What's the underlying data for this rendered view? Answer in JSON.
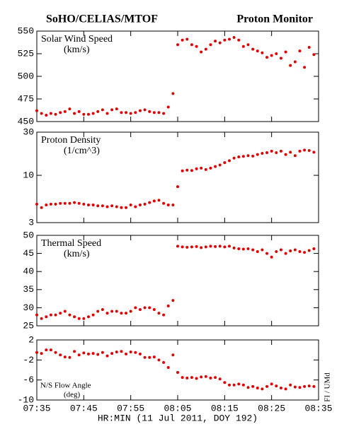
{
  "header": {
    "left": "SoHO/CELIAS/MTOF",
    "right": "Proton Monitor"
  },
  "credit": "FI / UMd",
  "chart_data": [
    {
      "type": "scatter",
      "title": "Solar Wind Speed",
      "unit": "(km/s)",
      "color": "#e00000",
      "x": [
        "07:35",
        "07:36",
        "07:37",
        "07:38",
        "07:39",
        "07:40",
        "07:41",
        "07:42",
        "07:43",
        "07:44",
        "07:45",
        "07:46",
        "07:47",
        "07:48",
        "07:49",
        "07:50",
        "07:51",
        "07:52",
        "07:53",
        "07:54",
        "07:55",
        "07:56",
        "07:57",
        "07:58",
        "07:59",
        "08:00",
        "08:01",
        "08:02",
        "08:03",
        "08:04",
        "08:05",
        "08:06",
        "08:07",
        "08:08",
        "08:09",
        "08:10",
        "08:11",
        "08:12",
        "08:13",
        "08:14",
        "08:15",
        "08:16",
        "08:17",
        "08:18",
        "08:19",
        "08:20",
        "08:21",
        "08:22",
        "08:23",
        "08:24",
        "08:25",
        "08:26",
        "08:27",
        "08:28",
        "08:29",
        "08:30",
        "08:31",
        "08:32",
        "08:33",
        "08:34"
      ],
      "values": [
        462,
        459,
        457,
        459,
        458,
        460,
        461,
        464,
        459,
        461,
        458,
        458,
        459,
        461,
        463,
        459,
        463,
        464,
        460,
        460,
        459,
        460,
        462,
        463,
        461,
        460,
        460,
        459,
        466,
        481,
        535,
        540,
        541,
        535,
        533,
        527,
        530,
        535,
        539,
        537,
        540,
        541,
        543,
        540,
        533,
        535,
        530,
        528,
        526,
        521,
        523,
        525,
        520,
        527,
        512,
        516,
        528,
        510,
        532,
        524
      ],
      "ylim": [
        450,
        550
      ],
      "yticks": [
        450,
        475,
        500,
        525,
        550
      ]
    },
    {
      "type": "scatter",
      "title": "Proton Density",
      "unit": "(1/cm^3)",
      "color": "#e00000",
      "log": true,
      "x": [
        "07:35",
        "07:36",
        "07:37",
        "07:38",
        "07:39",
        "07:40",
        "07:41",
        "07:42",
        "07:43",
        "07:44",
        "07:45",
        "07:46",
        "07:47",
        "07:48",
        "07:49",
        "07:50",
        "07:51",
        "07:52",
        "07:53",
        "07:54",
        "07:55",
        "07:56",
        "07:57",
        "07:58",
        "07:59",
        "08:00",
        "08:01",
        "08:02",
        "08:03",
        "08:04",
        "08:05",
        "08:06",
        "08:07",
        "08:08",
        "08:09",
        "08:10",
        "08:11",
        "08:12",
        "08:13",
        "08:14",
        "08:15",
        "08:16",
        "08:17",
        "08:18",
        "08:19",
        "08:20",
        "08:21",
        "08:22",
        "08:23",
        "08:24",
        "08:25",
        "08:26",
        "08:27",
        "08:28",
        "08:29",
        "08:30",
        "08:31",
        "08:32",
        "08:33",
        "08:34"
      ],
      "values": [
        4.8,
        4.4,
        4.7,
        4.8,
        4.8,
        4.9,
        4.9,
        4.9,
        5.0,
        4.9,
        4.8,
        4.7,
        4.7,
        4.6,
        4.6,
        4.5,
        4.6,
        4.5,
        4.4,
        4.4,
        4.7,
        4.5,
        4.7,
        4.8,
        5.0,
        5.2,
        5.3,
        4.9,
        4.7,
        4.7,
        7.5,
        11.2,
        11.4,
        11.3,
        11.8,
        12.0,
        11.6,
        12.0,
        12.5,
        13.0,
        13.8,
        14.5,
        15.5,
        16.0,
        16.2,
        16.5,
        16.3,
        17.0,
        17.5,
        17.8,
        18.5,
        17.8,
        18.5,
        17.0,
        18.0,
        16.5,
        18.5,
        19.0,
        18.8,
        18.0
      ],
      "ylim": [
        3,
        30
      ],
      "yticks": [
        3,
        10,
        30
      ]
    },
    {
      "type": "scatter",
      "title": "Thermal Speed",
      "unit": "(km/s)",
      "color": "#e00000",
      "x": [
        "07:35",
        "07:36",
        "07:37",
        "07:38",
        "07:39",
        "07:40",
        "07:41",
        "07:42",
        "07:43",
        "07:44",
        "07:45",
        "07:46",
        "07:47",
        "07:48",
        "07:49",
        "07:50",
        "07:51",
        "07:52",
        "07:53",
        "07:54",
        "07:55",
        "07:56",
        "07:57",
        "07:58",
        "07:59",
        "08:00",
        "08:01",
        "08:02",
        "08:03",
        "08:04",
        "08:05",
        "08:06",
        "08:07",
        "08:08",
        "08:09",
        "08:10",
        "08:11",
        "08:12",
        "08:13",
        "08:14",
        "08:15",
        "08:16",
        "08:17",
        "08:18",
        "08:19",
        "08:20",
        "08:21",
        "08:22",
        "08:23",
        "08:24",
        "08:25",
        "08:26",
        "08:27",
        "08:28",
        "08:29",
        "08:30",
        "08:31",
        "08:32",
        "08:33",
        "08:34"
      ],
      "values": [
        28,
        27,
        27.5,
        28,
        28,
        28.5,
        29,
        28,
        27.5,
        27,
        27,
        27.5,
        28,
        29,
        29.5,
        28.5,
        29,
        29,
        28.5,
        28.5,
        29,
        30,
        29.5,
        30,
        30,
        29.5,
        28.5,
        28,
        30.5,
        32,
        47,
        46.8,
        46.7,
        46.8,
        46.9,
        46.6,
        46.8,
        47,
        46.9,
        47,
        46.8,
        47,
        46.5,
        46.3,
        46.2,
        46.3,
        46,
        45.5,
        46,
        45,
        44,
        45.5,
        46,
        45,
        45.7,
        46,
        45.5,
        45.3,
        45.8,
        46.3
      ],
      "ylim": [
        25,
        50
      ],
      "yticks": [
        25,
        30,
        35,
        40,
        45,
        50
      ]
    },
    {
      "type": "scatter",
      "title": "N/S Flow Angle",
      "unit": "(deg)",
      "color": "#e00000",
      "x": [
        "07:35",
        "07:36",
        "07:37",
        "07:38",
        "07:39",
        "07:40",
        "07:41",
        "07:42",
        "07:43",
        "07:44",
        "07:45",
        "07:46",
        "07:47",
        "07:48",
        "07:49",
        "07:50",
        "07:51",
        "07:52",
        "07:53",
        "07:54",
        "07:55",
        "07:56",
        "07:57",
        "07:58",
        "07:59",
        "08:00",
        "08:01",
        "08:02",
        "08:03",
        "08:04",
        "08:05",
        "08:06",
        "08:07",
        "08:08",
        "08:09",
        "08:10",
        "08:11",
        "08:12",
        "08:13",
        "08:14",
        "08:15",
        "08:16",
        "08:17",
        "08:18",
        "08:19",
        "08:20",
        "08:21",
        "08:22",
        "08:23",
        "08:24",
        "08:25",
        "08:26",
        "08:27",
        "08:28",
        "08:29",
        "08:30",
        "08:31",
        "08:32",
        "08:33",
        "08:34"
      ],
      "values": [
        -0.5,
        -0.7,
        0,
        0,
        -0.5,
        -1,
        -1.4,
        -1.5,
        -0.3,
        -1,
        -0.6,
        -0.8,
        -0.7,
        -0.9,
        -0.5,
        -1.2,
        -0.7,
        -0.4,
        -0.3,
        -0.8,
        -0.4,
        -0.5,
        -0.8,
        -1.5,
        -1.5,
        -1.4,
        -2,
        -2.5,
        -3.5,
        -1.0,
        -4.5,
        -5.5,
        -5.6,
        -5.5,
        -5.7,
        -5.4,
        -5.3,
        -5.6,
        -5.5,
        -5.8,
        -6.5,
        -7,
        -7.0,
        -6.8,
        -7.0,
        -7.5,
        -7.3,
        -7.6,
        -7.8,
        -7.3,
        -6.8,
        -7.2,
        -7.6,
        -7.8,
        -7.0,
        -7.4,
        -7.5,
        -7.3,
        -7.2,
        -7.3
      ],
      "ylim": [
        -10,
        2
      ],
      "yticks": [
        -10,
        -6,
        -2,
        2
      ],
      "xlim": [
        "07:35",
        "08:35"
      ],
      "xticks": [
        "07:35",
        "07:45",
        "07:55",
        "08:05",
        "08:15",
        "08:25",
        "08:35"
      ],
      "xlabel": "HR:MIN (11 Jul 2011, DOY 192)"
    }
  ]
}
